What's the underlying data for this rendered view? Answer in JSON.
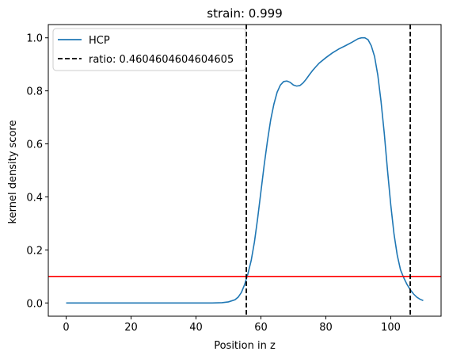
{
  "chart_data": {
    "type": "line",
    "title": "strain: 0.999",
    "xlabel": "Position in z",
    "ylabel": "kernel density score",
    "xlim": [
      -5.5,
      115.5
    ],
    "ylim": [
      -0.05,
      1.05
    ],
    "xticks": [
      0,
      20,
      40,
      60,
      80,
      100
    ],
    "yticks": [
      0.0,
      0.2,
      0.4,
      0.6,
      0.8,
      1.0
    ],
    "xtick_labels": [
      "0",
      "20",
      "40",
      "60",
      "80",
      "100"
    ],
    "ytick_labels": [
      "0.0",
      "0.2",
      "0.4",
      "0.6",
      "0.8",
      "1.0"
    ],
    "grid": false,
    "legend_position": "upper left",
    "series": [
      {
        "name": "HCP",
        "color": "#1f77b4",
        "style": "solid",
        "x": [
          0,
          10,
          20,
          30,
          40,
          45,
          48,
          50,
          52,
          53,
          54,
          55,
          55.5,
          56,
          57,
          58,
          59,
          60,
          61,
          62,
          63,
          64,
          65,
          66,
          67,
          68,
          69,
          70,
          71,
          72,
          73,
          74,
          75,
          76,
          77,
          78,
          80,
          82,
          84,
          86,
          88,
          89,
          90,
          91,
          92,
          93,
          94,
          95,
          96,
          97,
          98,
          99,
          100,
          101,
          102,
          103,
          104,
          105,
          106,
          107,
          108,
          109,
          110
        ],
        "y": [
          0.0,
          0.0,
          0.0,
          0.0,
          0.0,
          0.0,
          0.001,
          0.004,
          0.012,
          0.022,
          0.04,
          0.07,
          0.09,
          0.11,
          0.16,
          0.23,
          0.32,
          0.42,
          0.52,
          0.61,
          0.69,
          0.75,
          0.795,
          0.822,
          0.835,
          0.837,
          0.832,
          0.822,
          0.818,
          0.82,
          0.83,
          0.845,
          0.862,
          0.878,
          0.892,
          0.905,
          0.925,
          0.943,
          0.958,
          0.97,
          0.983,
          0.99,
          0.997,
          1.0,
          1.0,
          0.993,
          0.97,
          0.93,
          0.86,
          0.76,
          0.64,
          0.5,
          0.37,
          0.26,
          0.18,
          0.125,
          0.095,
          0.07,
          0.05,
          0.034,
          0.022,
          0.014,
          0.009
        ]
      },
      {
        "name": "ratio: 0.4604604604604605",
        "color": "#000000",
        "style": "dashed",
        "vlines": [
          55.5,
          106
        ]
      }
    ],
    "hline": {
      "y": 0.1,
      "color": "#ff0000"
    }
  }
}
